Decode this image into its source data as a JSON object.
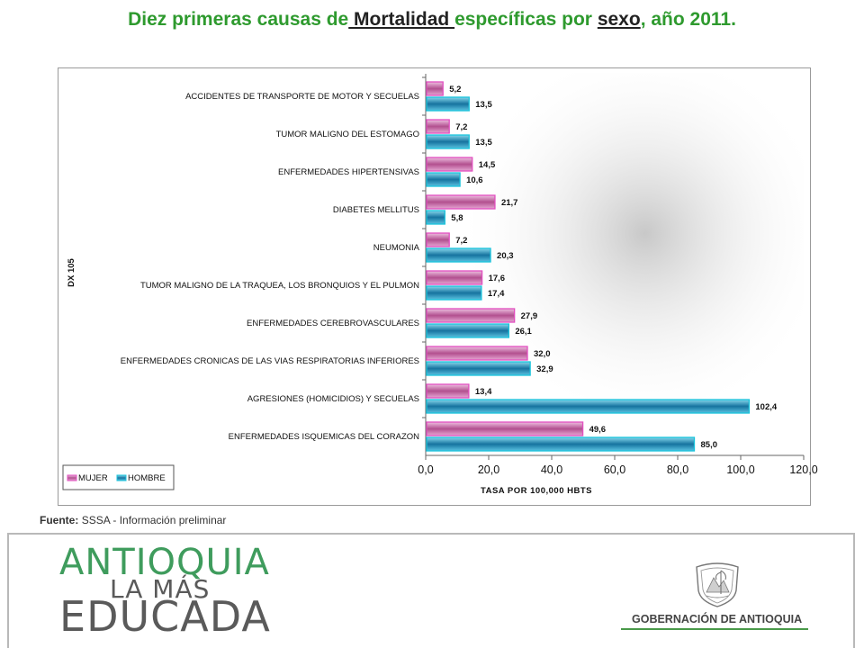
{
  "title": {
    "part1": "Diez primeras causas de",
    "part2": " Mortalidad ",
    "part3": "específicas por",
    "part4": "sexo",
    "part5": ", año 2011."
  },
  "source": {
    "label": "Fuente:",
    "text": "SSSA - Información preliminar"
  },
  "logo": {
    "line1": "ANTIOQUIA",
    "line2": "LA MÁS",
    "line3": "EDUCADA",
    "gov": "GOBERNACIÓN DE ANTIOQUIA"
  },
  "colors": {
    "title": "#2e9a2e",
    "mujer_fill": "#c05a9e",
    "mujer_edge": "#e24fc0",
    "hombre_fill": "#1e7fb0",
    "hombre_edge": "#19c4dc",
    "logo_green": "#3f9c5d"
  },
  "chart_data": {
    "type": "bar",
    "orientation": "horizontal",
    "categories": [
      "ACCIDENTES DE TRANSPORTE DE MOTOR Y SECUELAS",
      "TUMOR MALIGNO DEL ESTOMAGO",
      "ENFERMEDADES HIPERTENSIVAS",
      "DIABETES MELLITUS",
      "NEUMONIA",
      "TUMOR MALIGNO DE LA TRAQUEA, LOS BRONQUIOS Y EL PULMON",
      "ENFERMEDADES CEREBROVASCULARES",
      "ENFERMEDADES CRONICAS DE LAS VIAS RESPIRATORIAS INFERIORES",
      "AGRESIONES (HOMICIDIOS) Y SECUELAS",
      "ENFERMEDADES ISQUEMICAS DEL CORAZON"
    ],
    "series": [
      {
        "name": "MUJER",
        "values": [
          5.2,
          7.2,
          14.5,
          21.7,
          7.2,
          17.6,
          27.9,
          32.0,
          13.4,
          49.6
        ],
        "labels": [
          "5,2",
          "7,2",
          "14,5",
          "21,7",
          "7,2",
          "17,6",
          "27,9",
          "32,0",
          "13,4",
          "49,6"
        ]
      },
      {
        "name": "HOMBRE",
        "values": [
          13.5,
          13.5,
          10.6,
          5.8,
          20.3,
          17.4,
          26.1,
          32.9,
          102.4,
          85.0
        ],
        "labels": [
          "13,5",
          "13,5",
          "10,6",
          "5,8",
          "20,3",
          "17,4",
          "26,1",
          "32,9",
          "102,4",
          "85,0"
        ]
      }
    ],
    "xlim": [
      0,
      120
    ],
    "xticks": [
      0,
      20,
      40,
      60,
      80,
      100,
      120
    ],
    "xtick_labels": [
      "0,0",
      "20,0",
      "40,0",
      "60,0",
      "80,0",
      "100,0",
      "120,0"
    ],
    "xlabel": "TASA POR 100,000 HBTS",
    "ylabel": "DX 105",
    "legend_position": "bottom-left",
    "grid": false
  }
}
